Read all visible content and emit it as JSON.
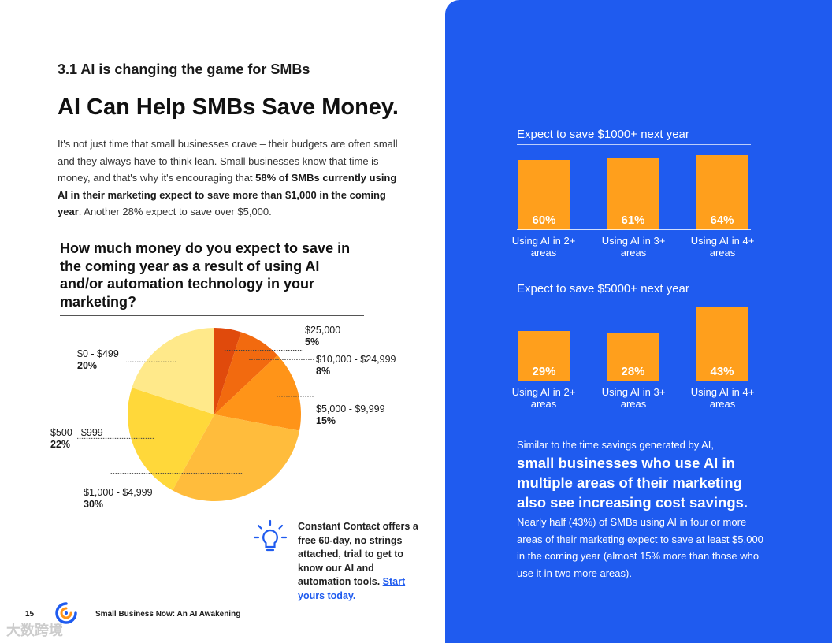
{
  "left": {
    "section_label": "3.1 AI is changing the game for SMBs",
    "title": "AI Can Help SMBs Save Money.",
    "intro_part1": "It's not just time that small businesses crave – their budgets are often small and they always have to think lean. Small businesses know that time is money, and that's why it's encouraging that ",
    "intro_bold": "58% of SMBs currently using AI in their marketing expect to save more than $1,000 in the coming year",
    "intro_part2": ". Another 28% expect to save over $5,000.",
    "question": "How much money do you expect to save in the coming year as a result of using AI and/or automation technology in your marketing?",
    "tip_text": "Constant Contact offers a free 60-day, no strings attached, trial to get to know our AI and automation tools.",
    "tip_link": "Start yours today.",
    "page_number": "15",
    "footer_title": "Small Business Now: An AI Awakening",
    "watermark": "大数跨境"
  },
  "chart_data": [
    {
      "type": "pie",
      "title": "How much money do you expect to save in the coming year as a result of using AI and/or automation technology in your marketing?",
      "labels": [
        "$25,000",
        "$10,000 - $24,999",
        "$5,000 - $9,999",
        "$1,000 - $4,999",
        "$500 - $999",
        "$0 - $499"
      ],
      "values": [
        5,
        8,
        15,
        30,
        22,
        20
      ],
      "value_labels": [
        "5%",
        "8%",
        "15%",
        "30%",
        "22%",
        "20%"
      ],
      "colors": [
        "#e04a0c",
        "#f26a0f",
        "#ff9418",
        "#ffbc3c",
        "#ffd83a",
        "#ffe98a"
      ]
    },
    {
      "type": "bar",
      "title": "Expect to save $1000+ next year",
      "categories": [
        "Using AI in 2+ areas",
        "Using AI in 3+ areas",
        "Using AI in 4+ areas"
      ],
      "values": [
        60,
        61,
        64
      ],
      "value_labels": [
        "60%",
        "61%",
        "64%"
      ],
      "color": "#ff9f1c"
    },
    {
      "type": "bar",
      "title": "Expect to save $5000+ next year",
      "categories": [
        "Using AI in 2+ areas",
        "Using AI in 3+ areas",
        "Using AI in 4+ areas"
      ],
      "values": [
        29,
        28,
        43
      ],
      "value_labels": [
        "29%",
        "28%",
        "43%"
      ],
      "color": "#ff9f1c"
    }
  ],
  "right": {
    "summary_intro": "Similar to the time savings generated by AI,",
    "summary_bold": "small businesses who use AI in multiple areas of their marketing also see increasing cost savings.",
    "summary_detail": "Nearly half (43%) of SMBs using AI in four or more areas of their marketing expect to save at least $5,000 in the coming year (almost 15% more than those who use it in two more areas)."
  },
  "colors": {
    "brand_blue": "#1f5bef",
    "bar_orange": "#ff9f1c"
  }
}
